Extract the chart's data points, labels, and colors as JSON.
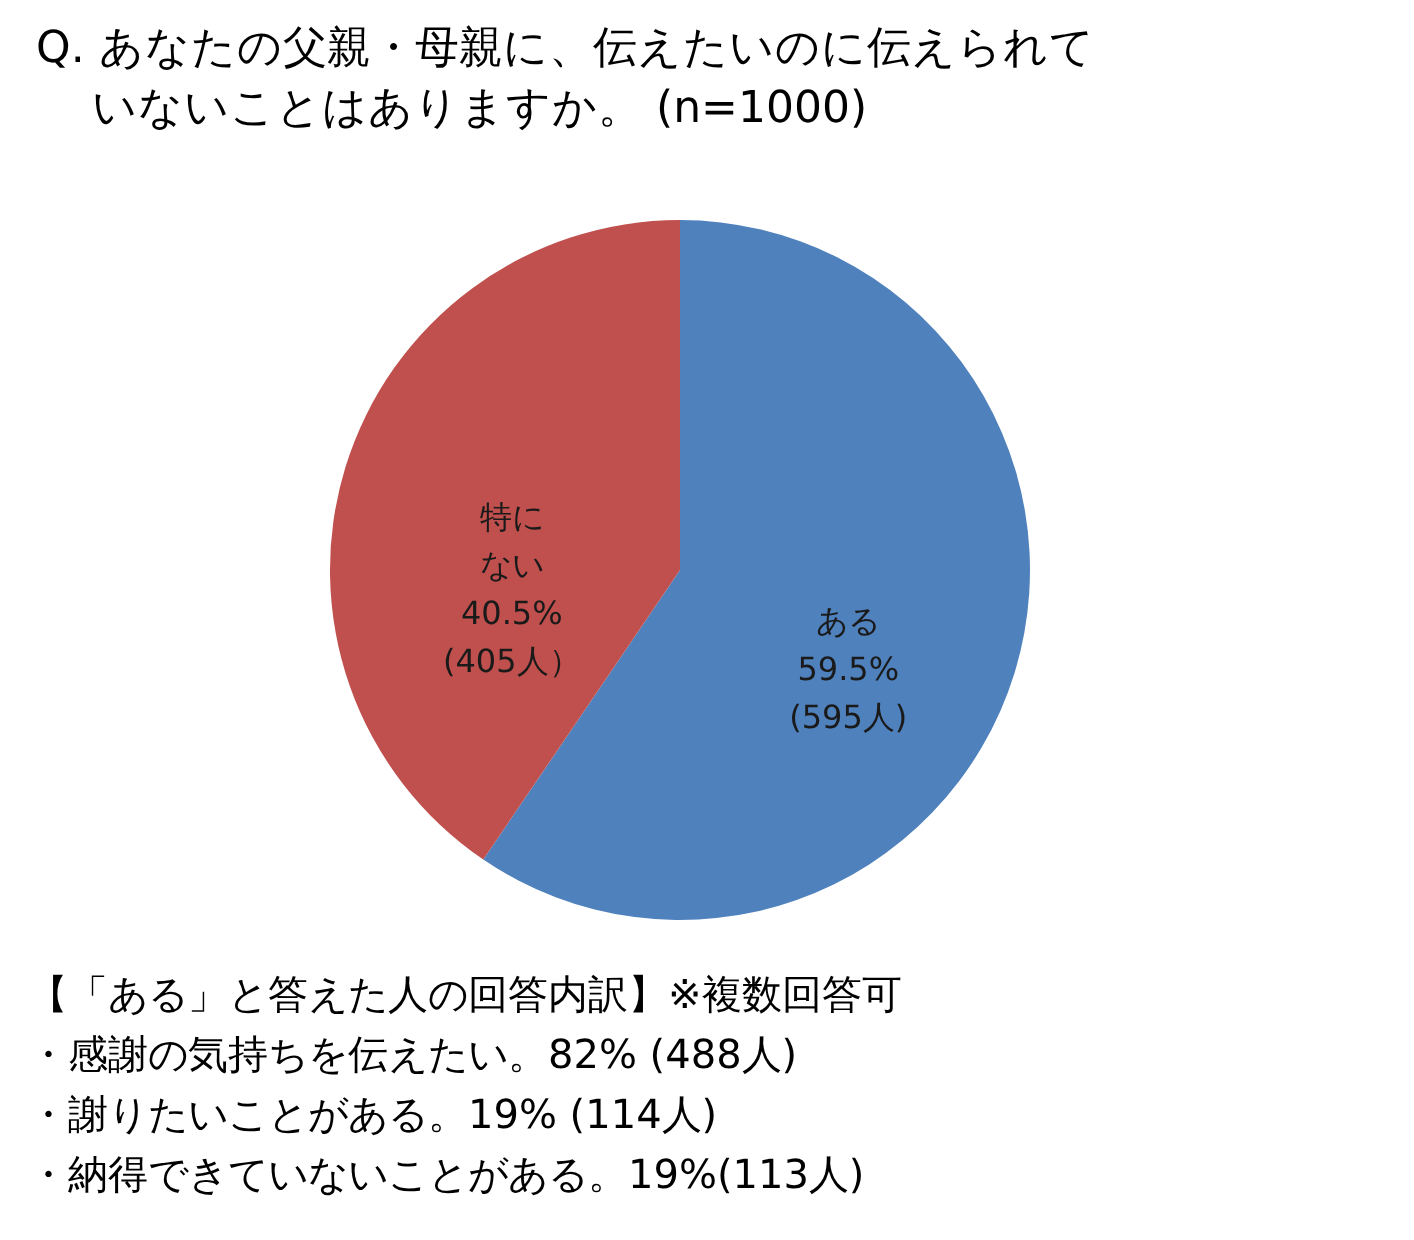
{
  "chart_data": {
    "type": "pie",
    "title": "Q. あなたの父親・母親に、伝えたいのに伝えられていないことはありますか。 (n=1000)",
    "categories": [
      "ある",
      "特にない"
    ],
    "values": [
      59.5,
      40.5
    ],
    "colors": [
      "#4f81bd",
      "#c0504d"
    ],
    "value_labels": [
      "59.5%\n(595人)",
      "40.5%\n(405人）"
    ],
    "legend": false,
    "annotations": [
      "【「ある」と答えた人の回答内訳】※複数回答可",
      "・感謝の気持ちを伝えたい。82% (488人)",
      "・謝りたいことがある。19% (114人)",
      "・納得できていないことがある。19%(113人)"
    ]
  }
}
